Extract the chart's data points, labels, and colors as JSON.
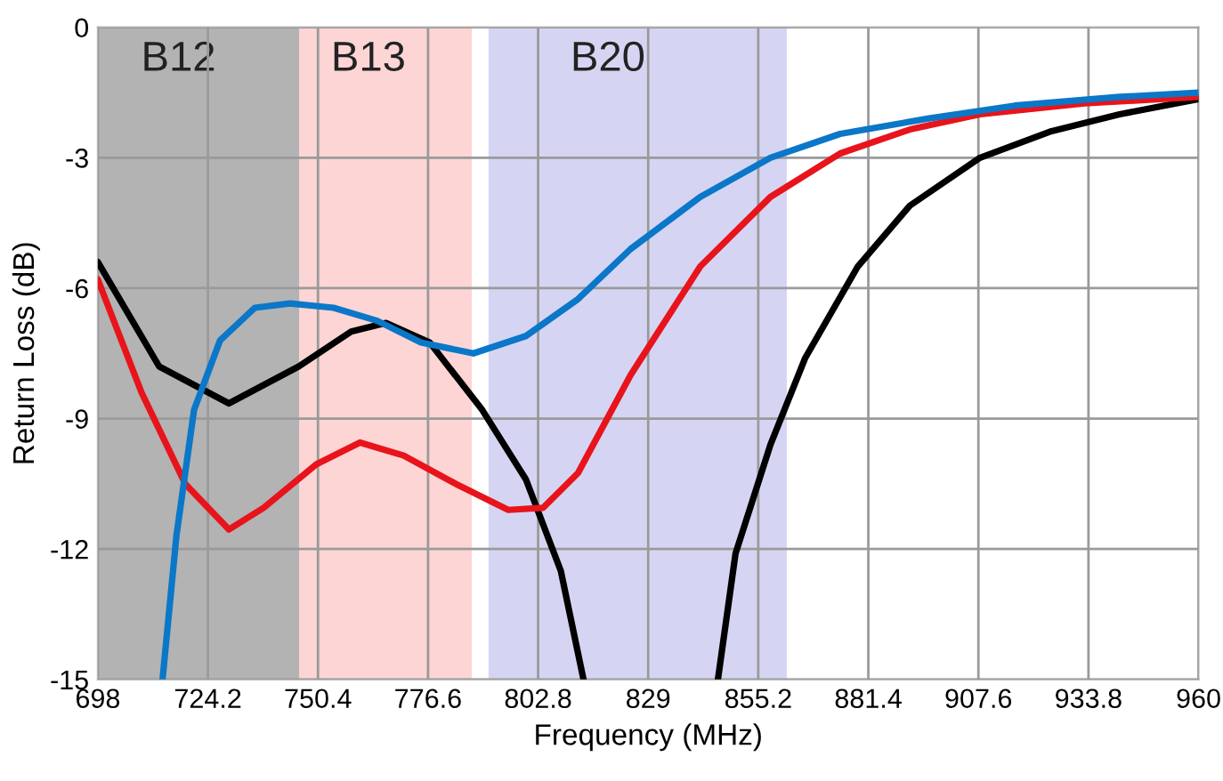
{
  "chart_data": {
    "type": "line",
    "xlabel": "Frequency (MHz)",
    "ylabel": "Return Loss (dB)",
    "xlim": [
      698,
      960
    ],
    "xticks": [
      698,
      724.2,
      750.4,
      776.6,
      802.8,
      829,
      855.2,
      881.4,
      907.6,
      933.8,
      960
    ],
    "ylim": [
      -15,
      0
    ],
    "yticks": [
      0,
      -3,
      -6,
      -9,
      -12,
      -15
    ],
    "grid": true,
    "marker": "none",
    "line_style": "solid",
    "bands": [
      {
        "axis": "x",
        "from": 698,
        "to": 746,
        "label": "B12",
        "color": "#b3b3b3"
      },
      {
        "axis": "x",
        "from": 746,
        "to": 787,
        "label": "B13",
        "color": "#fdd5d5"
      },
      {
        "axis": "x",
        "from": 791,
        "to": 862,
        "label": "B20",
        "color": "#d5d5f3"
      }
    ],
    "series": [
      {
        "color": "#000000",
        "x": [
          698,
          712.6,
          729.2,
          745.8,
          758.3,
          766.6,
          777,
          789.5,
          799.9,
          808.2,
          813.6,
          null,
          845.6,
          849.8,
          858.1,
          866.4,
          878.9,
          891.3,
          908,
          924.6,
          941.2,
          960
        ],
        "values": [
          -5.4,
          -7.8,
          -8.65,
          -7.8,
          -7.0,
          -6.8,
          -7.25,
          -8.8,
          -10.4,
          -12.5,
          -15,
          null,
          -15,
          -12.1,
          -9.6,
          -7.6,
          -5.5,
          -4.1,
          -3.0,
          -2.4,
          -2.0,
          -1.65
        ]
      },
      {
        "color": "#e8141b",
        "x": [
          698,
          708.4,
          718.8,
          729.2,
          737.5,
          750,
          760.4,
          770.8,
          783.2,
          795.7,
          804,
          812.3,
          824.8,
          841.4,
          858.1,
          874.7,
          891.3,
          908,
          932.9,
          960
        ],
        "values": [
          -5.8,
          -8.4,
          -10.5,
          -11.55,
          -11.05,
          -10.05,
          -9.55,
          -9.85,
          -10.5,
          -11.1,
          -11.05,
          -10.25,
          -8.0,
          -5.5,
          -3.9,
          -2.9,
          -2.35,
          -2.0,
          -1.75,
          -1.6
        ]
      },
      {
        "color": "#0b77c8",
        "x": [
          713.4,
          716.7,
          720.9,
          727.1,
          735.4,
          743.7,
          754.1,
          764.5,
          774.9,
          787.4,
          799.9,
          812.3,
          824.8,
          841.4,
          858.1,
          874.7,
          895.5,
          916.3,
          941.2,
          960
        ],
        "values": [
          -15,
          -11.7,
          -8.8,
          -7.2,
          -6.45,
          -6.35,
          -6.45,
          -6.75,
          -7.25,
          -7.5,
          -7.1,
          -6.25,
          -5.1,
          -3.9,
          -3.0,
          -2.45,
          -2.1,
          -1.8,
          -1.6,
          -1.5
        ]
      }
    ]
  }
}
